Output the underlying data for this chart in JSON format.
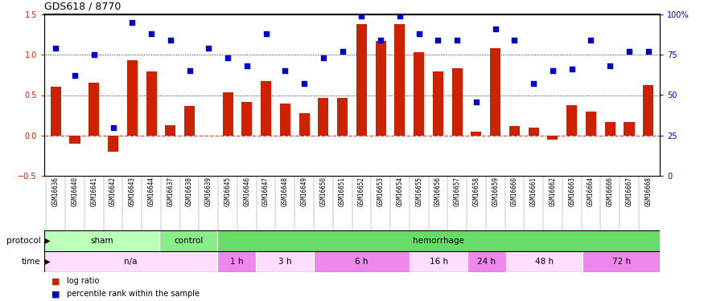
{
  "title": "GDS618 / 8770",
  "samples": [
    "GSM16636",
    "GSM16640",
    "GSM16641",
    "GSM16642",
    "GSM16643",
    "GSM16644",
    "GSM16637",
    "GSM16638",
    "GSM16639",
    "GSM16645",
    "GSM16646",
    "GSM16647",
    "GSM16648",
    "GSM16649",
    "GSM16650",
    "GSM16651",
    "GSM16652",
    "GSM16653",
    "GSM16654",
    "GSM16655",
    "GSM16656",
    "GSM16657",
    "GSM16658",
    "GSM16659",
    "GSM16660",
    "GSM16661",
    "GSM16662",
    "GSM16663",
    "GSM16664",
    "GSM16666",
    "GSM16667",
    "GSM16668"
  ],
  "log_ratio": [
    0.6,
    -0.1,
    0.65,
    -0.2,
    0.93,
    0.79,
    0.13,
    0.37,
    0.0,
    0.53,
    0.42,
    0.67,
    0.4,
    0.28,
    0.47,
    0.47,
    1.38,
    1.17,
    1.38,
    1.03,
    0.79,
    0.83,
    0.05,
    1.08,
    0.12,
    0.1,
    -0.05,
    0.38,
    0.3,
    0.17,
    0.17,
    0.62
  ],
  "pct_rank": [
    79,
    62,
    75,
    30,
    95,
    88,
    84,
    65,
    79,
    73,
    68,
    88,
    65,
    57,
    73,
    77,
    99,
    84,
    99,
    88,
    84,
    84,
    46,
    91,
    84,
    57,
    65,
    66,
    84,
    68,
    77,
    77
  ],
  "protocol_groups": [
    {
      "label": "sham",
      "start": 0,
      "end": 6,
      "color": "#bbffbb"
    },
    {
      "label": "control",
      "start": 6,
      "end": 9,
      "color": "#88ee88"
    },
    {
      "label": "hemorrhage",
      "start": 9,
      "end": 32,
      "color": "#66dd66"
    }
  ],
  "time_groups": [
    {
      "label": "n/a",
      "start": 0,
      "end": 9,
      "color": "#ffddff"
    },
    {
      "label": "1 h",
      "start": 9,
      "end": 11,
      "color": "#ee88ee"
    },
    {
      "label": "3 h",
      "start": 11,
      "end": 14,
      "color": "#ffddff"
    },
    {
      "label": "6 h",
      "start": 14,
      "end": 19,
      "color": "#ee88ee"
    },
    {
      "label": "16 h",
      "start": 19,
      "end": 22,
      "color": "#ffddff"
    },
    {
      "label": "24 h",
      "start": 22,
      "end": 24,
      "color": "#ee88ee"
    },
    {
      "label": "48 h",
      "start": 24,
      "end": 28,
      "color": "#ffddff"
    },
    {
      "label": "72 h",
      "start": 28,
      "end": 32,
      "color": "#ee88ee"
    }
  ],
  "bar_color": "#cc2200",
  "dot_color": "#0000cc",
  "ylim_left": [
    -0.5,
    1.5
  ],
  "ylim_right": [
    0,
    100
  ],
  "yticks_left": [
    -0.5,
    0.0,
    0.5,
    1.0,
    1.5
  ],
  "yticks_right": [
    0,
    25,
    50,
    75,
    100
  ],
  "ytick_labels_right": [
    "0",
    "25",
    "50",
    "75",
    "100%"
  ]
}
